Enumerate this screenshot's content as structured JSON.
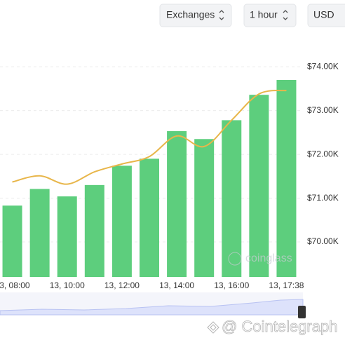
{
  "controls": [
    "Exchanges",
    "1 hour",
    "USD"
  ],
  "chart_data": {
    "type": "bar",
    "categories": [
      "13, 08:00",
      null,
      "13, 10:00",
      null,
      "13, 12:00",
      null,
      "13, 14:00",
      null,
      "13, 16:00",
      null,
      "13, 17:38"
    ],
    "series": [
      {
        "type": "bar",
        "color": "#5dce7d",
        "values": [
          70830,
          71210,
          71040,
          71300,
          71740,
          71900,
          72530,
          72350,
          72780,
          73360,
          73700
        ]
      },
      {
        "type": "line",
        "color": "#e8b64a",
        "values": [
          71370,
          71510,
          71320,
          71600,
          71780,
          71950,
          72420,
          72180,
          72780,
          73380,
          73460
        ]
      }
    ],
    "ylim": [
      69200,
      74500
    ],
    "yticks": [
      {
        "value": 70000,
        "label": "$70.00K"
      },
      {
        "value": 71000,
        "label": "$71.00K"
      },
      {
        "value": 72000,
        "label": "$72.00K"
      },
      {
        "value": 73000,
        "label": "$73.00K"
      },
      {
        "value": 74000,
        "label": "$74.00K"
      }
    ],
    "grid": true,
    "annotations": [
      "coinglass",
      "@ Cointelegraph"
    ]
  }
}
